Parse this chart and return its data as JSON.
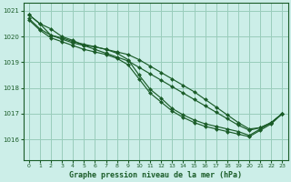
{
  "title": "Graphe pression niveau de la mer (hPa)",
  "bg_color": "#cceee8",
  "grid_color": "#99ccbb",
  "line_color": "#1a5c28",
  "marker_color": "#1a5c28",
  "xlim": [
    -0.5,
    23.5
  ],
  "ylim": [
    1015.2,
    1021.3
  ],
  "yticks": [
    1016,
    1017,
    1018,
    1019,
    1020,
    1021
  ],
  "xticks": [
    0,
    1,
    2,
    3,
    4,
    5,
    6,
    7,
    8,
    9,
    10,
    11,
    12,
    13,
    14,
    15,
    16,
    17,
    18,
    19,
    20,
    21,
    22,
    23
  ],
  "series": [
    [
      1020.85,
      1020.5,
      1020.3,
      1020.0,
      1019.85,
      1019.65,
      1019.5,
      1019.35,
      1019.2,
      1019.05,
      1018.8,
      1018.55,
      1018.3,
      1018.05,
      1017.8,
      1017.55,
      1017.3,
      1017.05,
      1016.8,
      1016.55,
      1016.35,
      1016.45,
      1016.65,
      1017.0
    ],
    [
      1020.85,
      1020.5,
      1020.05,
      1019.95,
      1019.8,
      1019.7,
      1019.6,
      1019.5,
      1019.4,
      1019.3,
      1019.1,
      1018.85,
      1018.6,
      1018.35,
      1018.1,
      1017.85,
      1017.55,
      1017.25,
      1016.95,
      1016.65,
      1016.4,
      1016.45,
      1016.65,
      1017.0
    ],
    [
      1020.7,
      1020.3,
      1020.05,
      1019.9,
      1019.75,
      1019.65,
      1019.6,
      1019.5,
      1019.35,
      1019.1,
      1018.5,
      1017.95,
      1017.6,
      1017.2,
      1016.95,
      1016.75,
      1016.6,
      1016.5,
      1016.4,
      1016.3,
      1016.15,
      1016.4,
      1016.65,
      1017.0
    ],
    [
      1020.65,
      1020.25,
      1019.95,
      1019.8,
      1019.65,
      1019.5,
      1019.4,
      1019.3,
      1019.15,
      1018.9,
      1018.35,
      1017.8,
      1017.45,
      1017.1,
      1016.85,
      1016.65,
      1016.5,
      1016.4,
      1016.3,
      1016.2,
      1016.1,
      1016.35,
      1016.6,
      1017.0
    ]
  ]
}
